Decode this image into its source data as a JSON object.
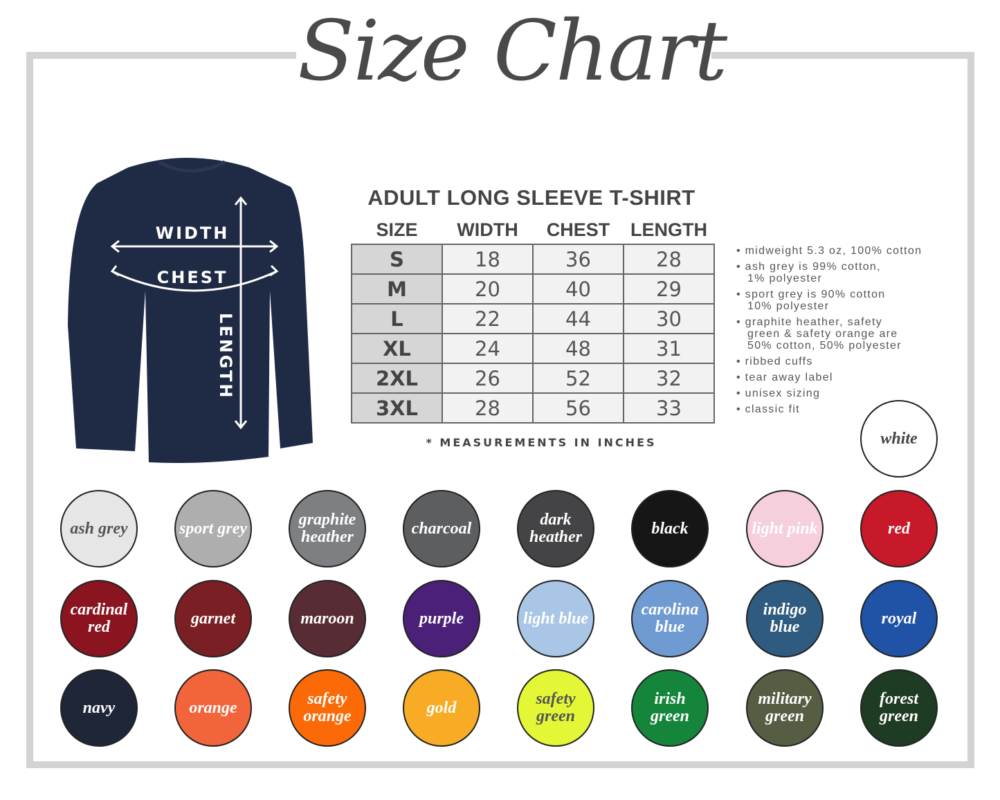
{
  "title": "Size Chart",
  "shirt": {
    "labels": {
      "width": "WIDTH",
      "chest": "CHEST",
      "length": "LENGTH"
    },
    "color": "#1f2a44"
  },
  "table": {
    "title": "ADULT LONG SLEEVE T-SHIRT",
    "headers": [
      "SIZE",
      "WIDTH",
      "CHEST",
      "LENGTH"
    ],
    "rows": [
      [
        "S",
        "18",
        "36",
        "28"
      ],
      [
        "M",
        "20",
        "40",
        "29"
      ],
      [
        "L",
        "22",
        "44",
        "30"
      ],
      [
        "XL",
        "24",
        "48",
        "31"
      ],
      [
        "2XL",
        "26",
        "52",
        "32"
      ],
      [
        "3XL",
        "28",
        "56",
        "33"
      ]
    ],
    "note": "* MEASUREMENTS IN INCHES"
  },
  "features": [
    "midweight 5.3 oz, 100% cotton",
    "ash grey is 99% cotton,\n1% polyester",
    "sport grey is 90% cotton\n10% polyester",
    "graphite heather, safety\ngreen & safety orange are\n50% cotton, 50% polyester",
    "ribbed cuffs",
    "tear away label",
    "unisex sizing",
    "classic fit"
  ],
  "colors": [
    {
      "name": "white",
      "hex": "#ffffff",
      "text": "#444444"
    },
    {
      "name": "ash grey",
      "hex": "#e6e6e6",
      "text": "#555555"
    },
    {
      "name": "sport grey",
      "hex": "#aeaeae",
      "text": "#ffffff"
    },
    {
      "name": "graphite heather",
      "hex": "#7d7f82",
      "text": "#ffffff"
    },
    {
      "name": "charcoal",
      "hex": "#5d5e60",
      "text": "#ffffff"
    },
    {
      "name": "dark heather",
      "hex": "#444446",
      "text": "#ffffff"
    },
    {
      "name": "black",
      "hex": "#161616",
      "text": "#ffffff"
    },
    {
      "name": "light pink",
      "hex": "#f6cfdc",
      "text": "#ffffff"
    },
    {
      "name": "red",
      "hex": "#c8192a",
      "text": "#ffffff"
    },
    {
      "name": "cardinal red",
      "hex": "#8a1420",
      "text": "#ffffff"
    },
    {
      "name": "garnet",
      "hex": "#7a2025",
      "text": "#ffffff"
    },
    {
      "name": "maroon",
      "hex": "#582c35",
      "text": "#ffffff"
    },
    {
      "name": "purple",
      "hex": "#4a2078",
      "text": "#ffffff"
    },
    {
      "name": "light blue",
      "hex": "#a9c6e6",
      "text": "#ffffff"
    },
    {
      "name": "carolina blue",
      "hex": "#6f9bd2",
      "text": "#ffffff"
    },
    {
      "name": "indigo blue",
      "hex": "#2f5b80",
      "text": "#ffffff"
    },
    {
      "name": "royal",
      "hex": "#2052a6",
      "text": "#ffffff"
    },
    {
      "name": "navy",
      "hex": "#1e2638",
      "text": "#ffffff"
    },
    {
      "name": "orange",
      "hex": "#f2643a",
      "text": "#ffffff"
    },
    {
      "name": "safety orange",
      "hex": "#fb6a07",
      "text": "#ffffff"
    },
    {
      "name": "gold",
      "hex": "#f8ab25",
      "text": "#ffffff"
    },
    {
      "name": "safety green",
      "hex": "#e3f737",
      "text": "#555555"
    },
    {
      "name": "irish green",
      "hex": "#14853a",
      "text": "#ffffff"
    },
    {
      "name": "military green",
      "hex": "#555d43",
      "text": "#ffffff"
    },
    {
      "name": "forest green",
      "hex": "#1e3b24",
      "text": "#ffffff"
    }
  ]
}
